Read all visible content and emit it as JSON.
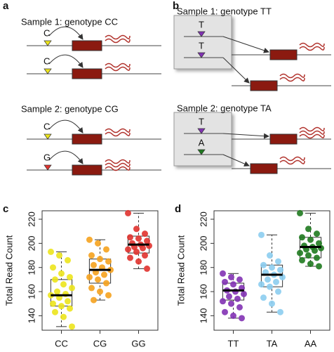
{
  "panels": {
    "a": {
      "label": "a",
      "sample1": "Sample 1: genotype CC",
      "sample1_alleles": [
        "C",
        "C"
      ],
      "sample2": "Sample 2: genotype CG",
      "sample2_alleles": [
        "C",
        "G"
      ]
    },
    "b": {
      "label": "b",
      "sample1": "Sample 1: genotype TT",
      "sample1_alleles": [
        "T",
        "T"
      ],
      "sample2": "Sample 2: genotype TA",
      "sample2_alleles": [
        "T",
        "A"
      ]
    }
  },
  "chart_data": [
    {
      "type": "box",
      "label": "c",
      "y_label": "Total Read Count",
      "categories": [
        "CC",
        "CG",
        "GG"
      ],
      "ylim": [
        128,
        227
      ],
      "yticks": [
        140,
        160,
        180,
        200,
        220
      ],
      "boxes": [
        {
          "color": "#ece41c",
          "whisker_low": 131,
          "q1": 148,
          "median": 157,
          "q3": 170,
          "whisker_high": 193,
          "points": [
            193,
            190,
            186,
            180,
            175,
            172,
            170,
            166,
            163,
            160,
            158,
            157,
            155,
            152,
            150,
            148,
            146,
            143,
            139,
            131
          ]
        },
        {
          "color": "#f5a21e",
          "whisker_low": 153,
          "q1": 167,
          "median": 178,
          "q3": 187,
          "whisker_high": 203,
          "points": [
            203,
            200,
            195,
            190,
            187,
            185,
            182,
            180,
            178,
            176,
            174,
            172,
            170,
            167,
            163,
            160,
            157,
            153
          ]
        },
        {
          "color": "#e0322e",
          "whisker_low": 179,
          "q1": 192,
          "median": 199,
          "q3": 206,
          "whisker_high": 225,
          "points": [
            225,
            212,
            208,
            205,
            204,
            202,
            200,
            199,
            198,
            197,
            196,
            195,
            193,
            190,
            188,
            185,
            179
          ]
        }
      ]
    },
    {
      "type": "box",
      "label": "d",
      "y_label": "Total Read Count",
      "categories": [
        "TT",
        "TA",
        "AA"
      ],
      "ylim": [
        128,
        227
      ],
      "yticks": [
        140,
        160,
        180,
        200,
        220
      ],
      "boxes": [
        {
          "color": "#8232b4",
          "whisker_low": 138,
          "q1": 153,
          "median": 161,
          "q3": 167,
          "whisker_high": 175,
          "points": [
            175,
            172,
            170,
            168,
            166,
            163,
            161,
            160,
            158,
            156,
            154,
            152,
            150,
            147,
            143,
            140,
            138
          ]
        },
        {
          "color": "#8ccdf0",
          "whisker_low": 143,
          "q1": 164,
          "median": 174,
          "q3": 182,
          "whisker_high": 207,
          "points": [
            207,
            190,
            185,
            182,
            180,
            178,
            176,
            174,
            172,
            170,
            168,
            166,
            164,
            160,
            155,
            150,
            143
          ]
        },
        {
          "color": "#1f7a1f",
          "whisker_low": 181,
          "q1": 188,
          "median": 197,
          "q3": 205,
          "whisker_high": 225,
          "points": [
            225,
            212,
            208,
            205,
            203,
            200,
            198,
            197,
            196,
            195,
            194,
            192,
            190,
            188,
            186,
            183,
            181
          ]
        }
      ]
    }
  ]
}
